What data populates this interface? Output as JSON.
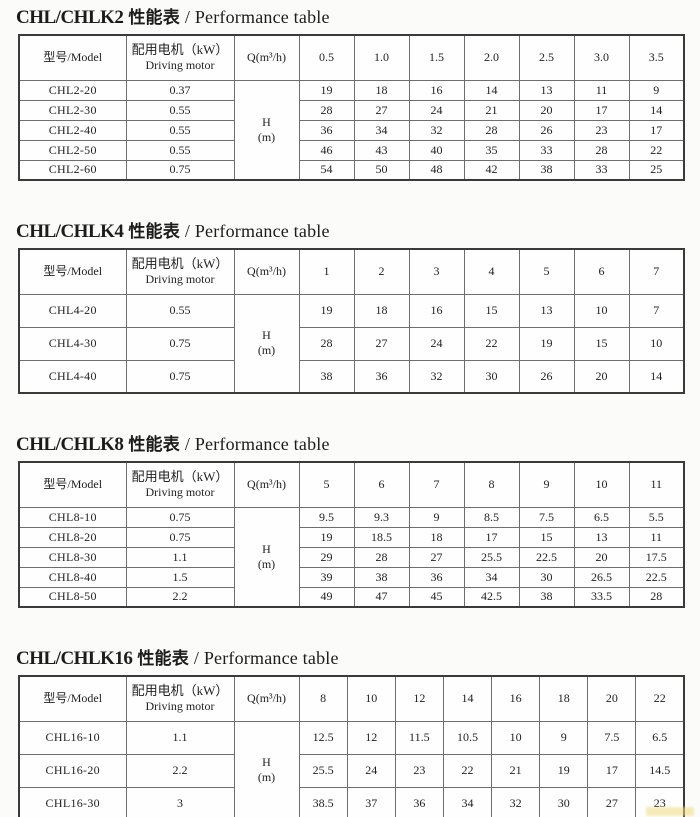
{
  "page": {
    "background": "#fbfbfa",
    "text_color": "#1c1c1c",
    "border_outer_color": "#3a3a3a",
    "border_inner_color": "#6e6e6e"
  },
  "watermark": {
    "color": "#eedd7f"
  },
  "tables": [
    {
      "title_model": "CHL/CHLK2",
      "title_cn": "性能表",
      "title_en": "/ Performance table",
      "headers": {
        "model": "型号/Model",
        "motor_cn": "配用电机（kW）",
        "motor_en": "Driving motor",
        "q": "Q(m³/h)",
        "h_line1": "H",
        "h_line2": "(m)"
      },
      "flow_columns": [
        "0.5",
        "1.0",
        "1.5",
        "2.0",
        "2.5",
        "3.0",
        "3.5"
      ],
      "rows": [
        {
          "model": "CHL2-20",
          "motor": "0.37",
          "values": [
            "19",
            "18",
            "16",
            "14",
            "13",
            "11",
            "9"
          ]
        },
        {
          "model": "CHL2-30",
          "motor": "0.55",
          "values": [
            "28",
            "27",
            "24",
            "21",
            "20",
            "17",
            "14"
          ]
        },
        {
          "model": "CHL2-40",
          "motor": "0.55",
          "values": [
            "36",
            "34",
            "32",
            "28",
            "26",
            "23",
            "17"
          ]
        },
        {
          "model": "CHL2-50",
          "motor": "0.55",
          "values": [
            "46",
            "43",
            "40",
            "35",
            "33",
            "28",
            "22"
          ]
        },
        {
          "model": "CHL2-60",
          "motor": "0.75",
          "values": [
            "54",
            "50",
            "48",
            "42",
            "38",
            "33",
            "25"
          ]
        }
      ]
    },
    {
      "title_model": "CHL/CHLK4",
      "title_cn": "性能表",
      "title_en": "/ Performance table",
      "headers": {
        "model": "型号/Model",
        "motor_cn": "配用电机（kW）",
        "motor_en": "Driving motor",
        "q": "Q(m³/h)",
        "h_line1": "H",
        "h_line2": "(m)"
      },
      "flow_columns": [
        "1",
        "2",
        "3",
        "4",
        "5",
        "6",
        "7"
      ],
      "rows": [
        {
          "model": "CHL4-20",
          "motor": "0.55",
          "values": [
            "19",
            "18",
            "16",
            "15",
            "13",
            "10",
            "7"
          ]
        },
        {
          "model": "CHL4-30",
          "motor": "0.75",
          "values": [
            "28",
            "27",
            "24",
            "22",
            "19",
            "15",
            "10"
          ]
        },
        {
          "model": "CHL4-40",
          "motor": "0.75",
          "values": [
            "38",
            "36",
            "32",
            "30",
            "26",
            "20",
            "14"
          ]
        }
      ]
    },
    {
      "title_model": "CHL/CHLK8",
      "title_cn": "性能表",
      "title_en": "/ Performance table",
      "headers": {
        "model": "型号/Model",
        "motor_cn": "配用电机（kW）",
        "motor_en": "Driving motor",
        "q": "Q(m³/h)",
        "h_line1": "H",
        "h_line2": "(m)"
      },
      "flow_columns": [
        "5",
        "6",
        "7",
        "8",
        "9",
        "10",
        "11"
      ],
      "rows": [
        {
          "model": "CHL8-10",
          "motor": "0.75",
          "values": [
            "9.5",
            "9.3",
            "9",
            "8.5",
            "7.5",
            "6.5",
            "5.5"
          ]
        },
        {
          "model": "CHL8-20",
          "motor": "0.75",
          "values": [
            "19",
            "18.5",
            "18",
            "17",
            "15",
            "13",
            "11"
          ]
        },
        {
          "model": "CHL8-30",
          "motor": "1.1",
          "values": [
            "29",
            "28",
            "27",
            "25.5",
            "22.5",
            "20",
            "17.5"
          ]
        },
        {
          "model": "CHL8-40",
          "motor": "1.5",
          "values": [
            "39",
            "38",
            "36",
            "34",
            "30",
            "26.5",
            "22.5"
          ]
        },
        {
          "model": "CHL8-50",
          "motor": "2.2",
          "values": [
            "49",
            "47",
            "45",
            "42.5",
            "38",
            "33.5",
            "28"
          ]
        }
      ]
    },
    {
      "title_model": "CHL/CHLK16",
      "title_cn": "性能表",
      "title_en": "/ Performance table",
      "headers": {
        "model": "型号/Model",
        "motor_cn": "配用电机（kW）",
        "motor_en": "Driving motor",
        "q": "Q(m³/h)",
        "h_line1": "H",
        "h_line2": "(m)"
      },
      "flow_columns": [
        "8",
        "10",
        "12",
        "14",
        "16",
        "18",
        "20",
        "22"
      ],
      "rows": [
        {
          "model": "CHL16-10",
          "motor": "1.1",
          "values": [
            "12.5",
            "12",
            "11.5",
            "10.5",
            "10",
            "9",
            "7.5",
            "6.5"
          ]
        },
        {
          "model": "CHL16-20",
          "motor": "2.2",
          "values": [
            "25.5",
            "24",
            "23",
            "22",
            "21",
            "19",
            "17",
            "14.5"
          ]
        },
        {
          "model": "CHL16-30",
          "motor": "3",
          "values": [
            "38.5",
            "37",
            "36",
            "34",
            "32",
            "30",
            "27",
            "23"
          ]
        }
      ]
    }
  ]
}
